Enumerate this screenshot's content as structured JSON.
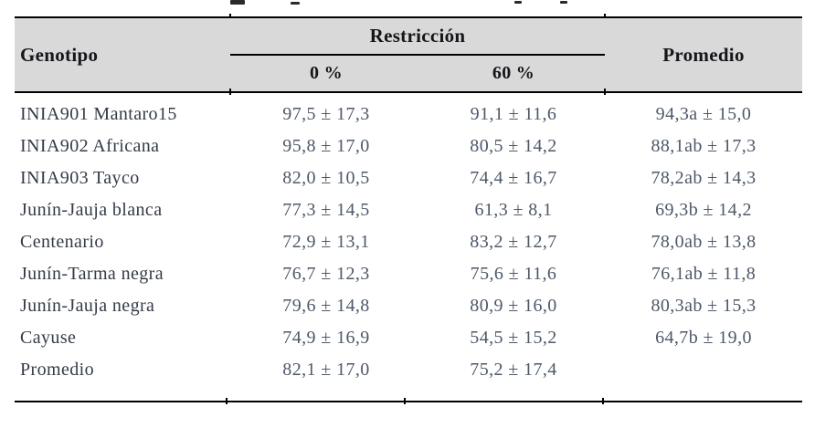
{
  "table": {
    "header": {
      "genotipo": "Genotipo",
      "restriccion": "Restricción",
      "sub_0": "0 %",
      "sub_60": "60 %",
      "promedio": "Promedio"
    },
    "rows": [
      {
        "genotipo": "INIA901 Mantaro15",
        "restriccion_0": "97,5 ± 17,3",
        "restriccion_60": "91,1 ± 11,6",
        "promedio": "94,3a ± 15,0"
      },
      {
        "genotipo": "INIA902 Africana",
        "restriccion_0": "95,8 ± 17,0",
        "restriccion_60": "80,5 ± 14,2",
        "promedio": "88,1ab ± 17,3"
      },
      {
        "genotipo": "INIA903 Tayco",
        "restriccion_0": "82,0 ± 10,5",
        "restriccion_60": "74,4 ± 16,7",
        "promedio": "78,2ab ± 14,3"
      },
      {
        "genotipo": "Junín-Jauja blanca",
        "restriccion_0": "77,3 ± 14,5",
        "restriccion_60": "61,3 ± 8,1",
        "promedio": "69,3b ± 14,2"
      },
      {
        "genotipo": "Centenario",
        "restriccion_0": "72,9 ± 13,1",
        "restriccion_60": "83,2 ± 12,7",
        "promedio": "78,0ab ± 13,8"
      },
      {
        "genotipo": "Junín-Tarma negra",
        "restriccion_0": "76,7 ± 12,3",
        "restriccion_60": "75,6 ± 11,6",
        "promedio": "76,1ab ± 11,8"
      },
      {
        "genotipo": "Junín-Jauja negra",
        "restriccion_0": "79,6 ± 14,8",
        "restriccion_60": "80,9 ± 16,0",
        "promedio": "80,3ab ± 15,3"
      },
      {
        "genotipo": "Cayuse",
        "restriccion_0": "74,9 ± 16,9",
        "restriccion_60": "54,5 ± 15,2",
        "promedio": "64,7b ± 19,0"
      },
      {
        "genotipo": "Promedio",
        "restriccion_0": "82,1 ± 17,0",
        "restriccion_60": "75,2 ± 17,4",
        "promedio": ""
      }
    ],
    "colors": {
      "header_bg": "#d9d9d9",
      "border": "#000000",
      "label_text": "#343b47",
      "value_text": "#4d5869"
    }
  }
}
